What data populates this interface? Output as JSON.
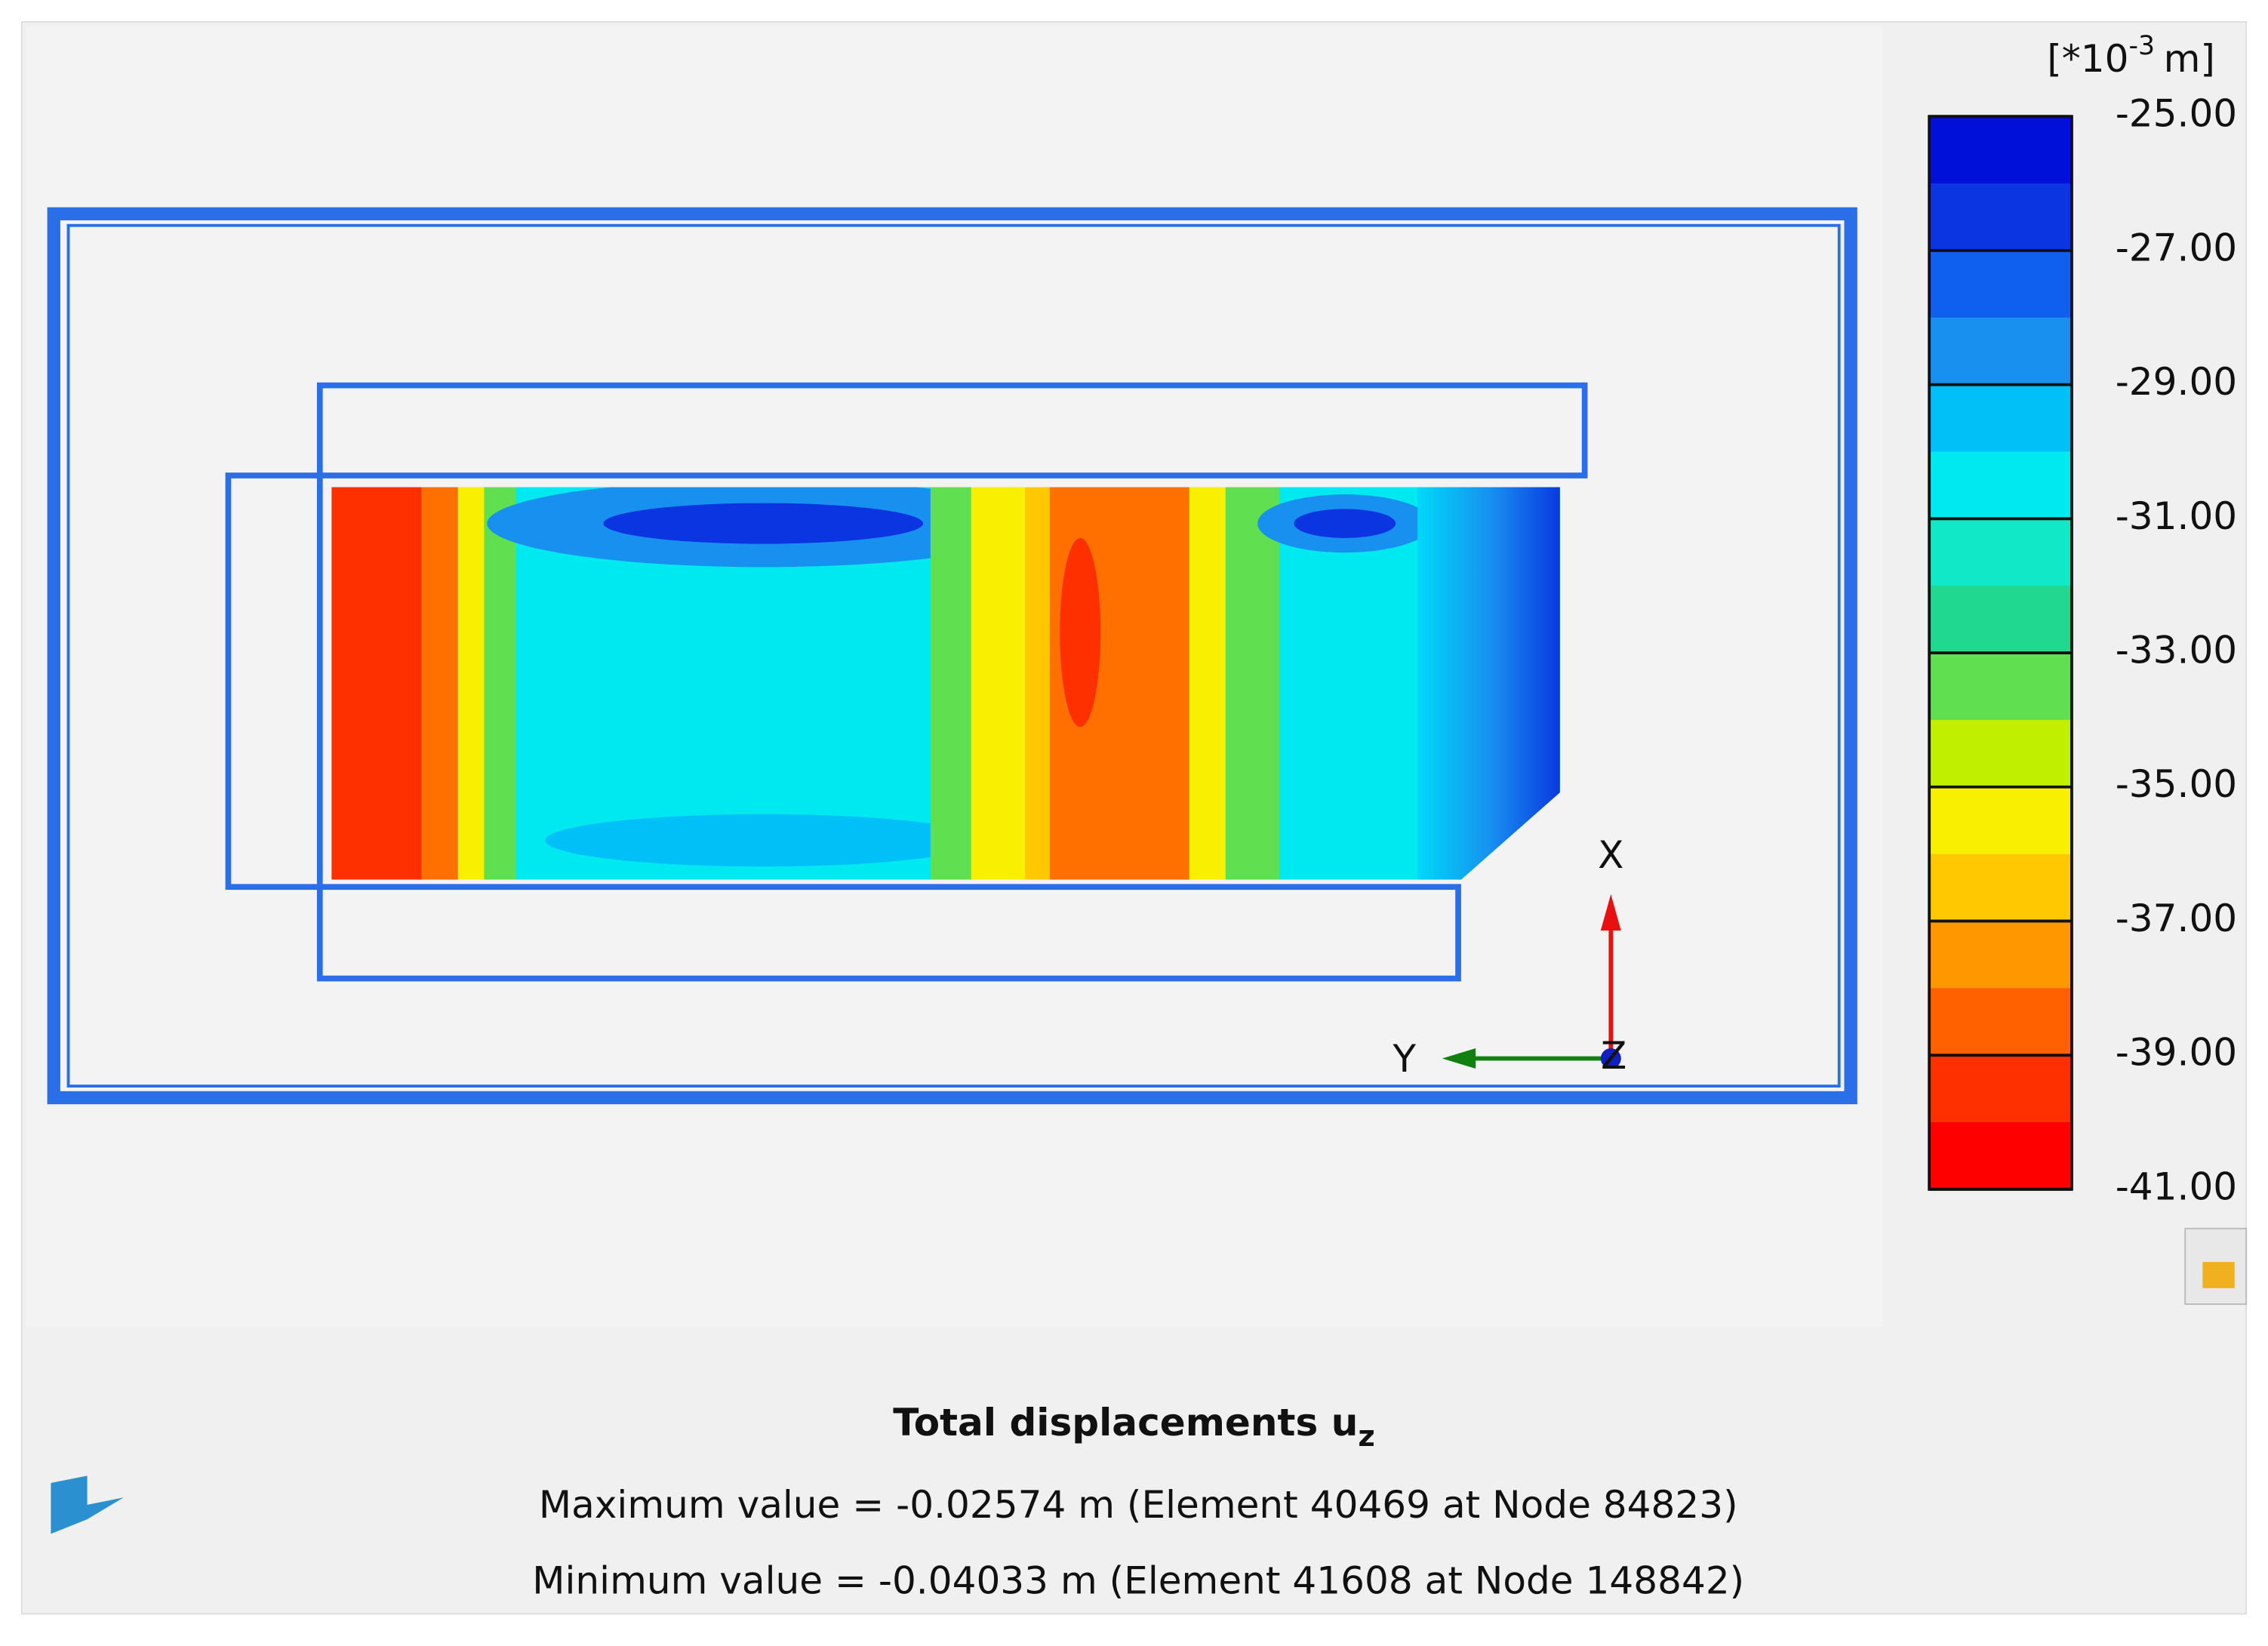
{
  "legend": {
    "unit": {
      "base": "[*10",
      "exponent": "-3",
      "suffix": "m]"
    },
    "labels": [
      "-25.00",
      "-27.00",
      "-29.00",
      "-31.00",
      "-33.00",
      "-35.00",
      "-37.00",
      "-39.00",
      "-41.00"
    ],
    "colors": [
      "#0010d8",
      "#0a35e0",
      "#1060f0",
      "#1890f0",
      "#00c0f8",
      "#00e8f0",
      "#10e8c8",
      "#20d890",
      "#60e050",
      "#c0f000",
      "#f8f000",
      "#ffc800",
      "#ff9800",
      "#ff6000",
      "#ff3000",
      "#ff0000"
    ]
  },
  "axes": {
    "x": "X",
    "y": "Y",
    "z": "Z"
  },
  "info": {
    "title": "Total displacements u",
    "title_subscript": "z",
    "maximum": "Maximum value = -0.02574 m (Element 40469 at Node 84823)",
    "minimum": "Minimum value = -0.04033 m (Element 41608 at Node 148842)"
  }
}
